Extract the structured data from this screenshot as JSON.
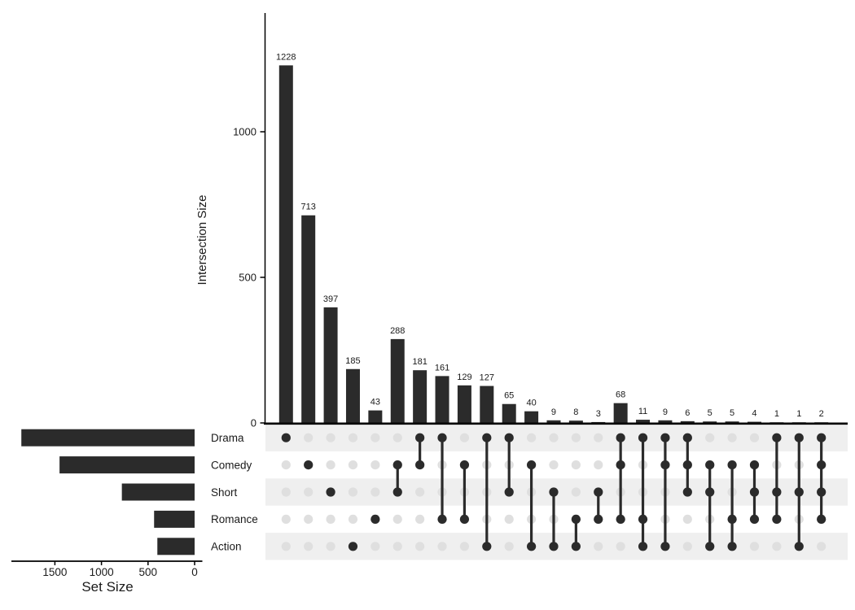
{
  "chart_data": {
    "type": "upset",
    "description": "UpSet plot of movie genre set intersections",
    "y_axis": {
      "label": "Intersection Size",
      "ticks": [
        0,
        500,
        1000
      ],
      "max": 1400
    },
    "left_axis": {
      "label": "Set Size",
      "ticks": [
        1500,
        1000,
        500,
        0
      ],
      "max": 1950
    },
    "sets": [
      {
        "name": "Drama",
        "size": 1860
      },
      {
        "name": "Comedy",
        "size": 1450
      },
      {
        "name": "Short",
        "size": 781
      },
      {
        "name": "Romance",
        "size": 435
      },
      {
        "name": "Action",
        "size": 400
      }
    ],
    "intersections": [
      {
        "sets": [
          "Drama"
        ],
        "value": 1228
      },
      {
        "sets": [
          "Comedy"
        ],
        "value": 713
      },
      {
        "sets": [
          "Short"
        ],
        "value": 397
      },
      {
        "sets": [
          "Action"
        ],
        "value": 185
      },
      {
        "sets": [
          "Romance"
        ],
        "value": 43
      },
      {
        "sets": [
          "Comedy",
          "Short"
        ],
        "value": 288
      },
      {
        "sets": [
          "Drama",
          "Comedy"
        ],
        "value": 181
      },
      {
        "sets": [
          "Drama",
          "Romance"
        ],
        "value": 161
      },
      {
        "sets": [
          "Comedy",
          "Romance"
        ],
        "value": 129
      },
      {
        "sets": [
          "Drama",
          "Action"
        ],
        "value": 127
      },
      {
        "sets": [
          "Drama",
          "Short"
        ],
        "value": 65
      },
      {
        "sets": [
          "Comedy",
          "Action"
        ],
        "value": 40
      },
      {
        "sets": [
          "Short",
          "Action"
        ],
        "value": 9
      },
      {
        "sets": [
          "Romance",
          "Action"
        ],
        "value": 8
      },
      {
        "sets": [
          "Short",
          "Romance"
        ],
        "value": 3
      },
      {
        "sets": [
          "Drama",
          "Comedy",
          "Romance"
        ],
        "value": 68
      },
      {
        "sets": [
          "Drama",
          "Romance",
          "Action"
        ],
        "value": 11
      },
      {
        "sets": [
          "Drama",
          "Comedy",
          "Action"
        ],
        "value": 9
      },
      {
        "sets": [
          "Drama",
          "Comedy",
          "Short"
        ],
        "value": 6
      },
      {
        "sets": [
          "Comedy",
          "Short",
          "Action"
        ],
        "value": 5
      },
      {
        "sets": [
          "Comedy",
          "Romance",
          "Action"
        ],
        "value": 5
      },
      {
        "sets": [
          "Comedy",
          "Short",
          "Romance"
        ],
        "value": 4
      },
      {
        "sets": [
          "Drama",
          "Short",
          "Romance"
        ],
        "value": 1
      },
      {
        "sets": [
          "Drama",
          "Short",
          "Action"
        ],
        "value": 1
      },
      {
        "sets": [
          "Drama",
          "Comedy",
          "Short",
          "Romance"
        ],
        "value": 2
      }
    ],
    "colors": {
      "bar": "#2b2b2b",
      "active_dot": "#2b2b2b",
      "inactive_dot": "#dfdfdf",
      "stripe": "#efefef",
      "axis": "#000000",
      "text": "#1a1a1a"
    }
  }
}
